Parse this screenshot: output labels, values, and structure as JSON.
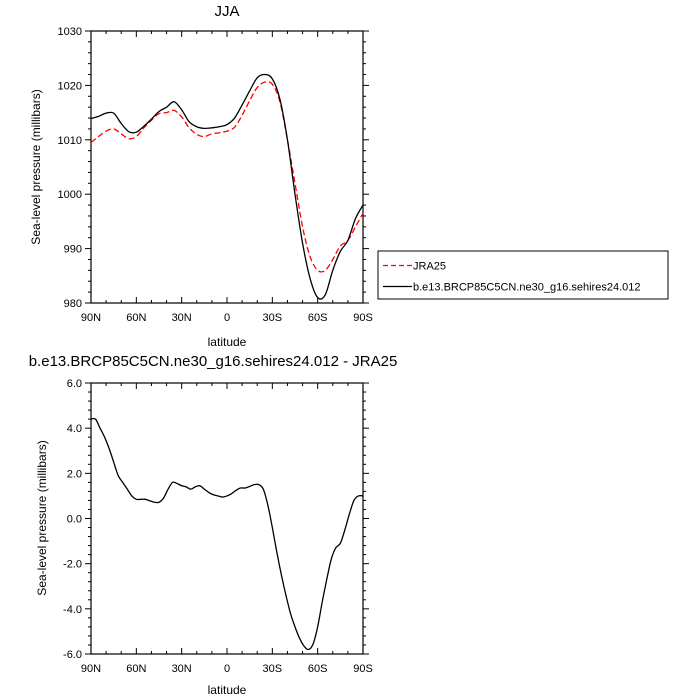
{
  "chart_data": [
    {
      "type": "line",
      "title": "JJA",
      "xlabel": "latitude",
      "ylabel": "Sea-level pressure (millibars)",
      "xlim": [
        90,
        -90
      ],
      "ylim": [
        980,
        1030
      ],
      "x_ticks": [
        90,
        60,
        30,
        0,
        -30,
        -60,
        -90
      ],
      "x_tick_labels": [
        "90N",
        "60N",
        "30N",
        "0",
        "30S",
        "60S",
        "90S"
      ],
      "y_ticks": [
        980,
        990,
        1000,
        1010,
        1020,
        1030
      ],
      "y_tick_labels": [
        "980",
        "990",
        "1000",
        "1010",
        "1020",
        "1030"
      ],
      "legend_position": "outside-right",
      "series": [
        {
          "name": "JRA25",
          "color": "#ff0000",
          "dash": "dashed",
          "x": [
            90,
            85,
            80,
            75,
            70,
            65,
            60,
            55,
            50,
            45,
            40,
            35,
            30,
            25,
            20,
            15,
            10,
            5,
            0,
            -5,
            -10,
            -15,
            -20,
            -25,
            -30,
            -35,
            -40,
            -45,
            -50,
            -55,
            -60,
            -65,
            -70,
            -75,
            -80,
            -85,
            -90
          ],
          "y": [
            1009.5,
            1010.6,
            1011.6,
            1012.0,
            1011.1,
            1010.2,
            1010.6,
            1012.2,
            1013.6,
            1014.8,
            1015.0,
            1015.4,
            1014.2,
            1012.2,
            1011.0,
            1010.6,
            1011.1,
            1011.3,
            1011.6,
            1012.3,
            1014.5,
            1017.2,
            1019.6,
            1020.6,
            1020.2,
            1017.0,
            1010.0,
            1002.0,
            994.0,
            988.5,
            986.0,
            986.0,
            988.0,
            990.5,
            991.5,
            994.0,
            996.5
          ]
        },
        {
          "name": "b.e13.BRCP85C5CN.ne30_g16.sehires24.012",
          "color": "#000000",
          "dash": "solid",
          "x": [
            90,
            85,
            80,
            75,
            70,
            65,
            60,
            55,
            50,
            45,
            40,
            35,
            30,
            25,
            20,
            15,
            10,
            5,
            0,
            -5,
            -10,
            -15,
            -20,
            -25,
            -30,
            -35,
            -40,
            -45,
            -50,
            -55,
            -60,
            -65,
            -70,
            -75,
            -80,
            -85,
            -90
          ],
          "y": [
            1013.9,
            1014.3,
            1014.9,
            1014.9,
            1013.0,
            1011.5,
            1011.4,
            1012.5,
            1013.8,
            1015.2,
            1016.0,
            1017.0,
            1015.5,
            1013.3,
            1012.4,
            1012.1,
            1012.2,
            1012.4,
            1012.8,
            1014.0,
            1016.4,
            1019.0,
            1021.4,
            1022.0,
            1021.2,
            1017.5,
            1010.0,
            1000.0,
            991.0,
            984.5,
            981.0,
            981.5,
            986.0,
            989.5,
            991.5,
            995.5,
            998.0
          ]
        }
      ]
    },
    {
      "type": "line",
      "title": "b.e13.BRCP85C5CN.ne30_g16.sehires24.012 - JRA25",
      "xlabel": "latitude",
      "ylabel": "Sea-level pressure (millibars)",
      "xlim": [
        90,
        -90
      ],
      "ylim": [
        -6,
        6
      ],
      "x_ticks": [
        90,
        60,
        30,
        0,
        -30,
        -60,
        -90
      ],
      "x_tick_labels": [
        "90N",
        "60N",
        "30N",
        "0",
        "30S",
        "60S",
        "90S"
      ],
      "y_ticks": [
        -6,
        -4,
        -2,
        0,
        2,
        4,
        6
      ],
      "y_tick_labels": [
        "-6.0",
        "-4.0",
        "-2.0",
        "0.0",
        "2.0",
        "4.0",
        "6.0"
      ],
      "series": [
        {
          "color": "#000000",
          "dash": "solid",
          "x": [
            90,
            87,
            84,
            81,
            78,
            75,
            72,
            69,
            66,
            63,
            60,
            57,
            54,
            51,
            48,
            45,
            42,
            39,
            36,
            33,
            30,
            27,
            24,
            21,
            18,
            15,
            12,
            9,
            6,
            3,
            0,
            -3,
            -6,
            -9,
            -12,
            -15,
            -18,
            -21,
            -24,
            -27,
            -30,
            -33,
            -36,
            -39,
            -42,
            -45,
            -48,
            -51,
            -54,
            -57,
            -60,
            -63,
            -66,
            -69,
            -72,
            -75,
            -78,
            -81,
            -84,
            -87,
            -90
          ],
          "y": [
            4.4,
            4.4,
            4.0,
            3.6,
            3.1,
            2.5,
            1.9,
            1.6,
            1.3,
            1.0,
            0.85,
            0.85,
            0.85,
            0.78,
            0.72,
            0.72,
            0.9,
            1.3,
            1.6,
            1.55,
            1.45,
            1.4,
            1.3,
            1.4,
            1.45,
            1.3,
            1.15,
            1.05,
            1.0,
            0.95,
            1.0,
            1.1,
            1.25,
            1.35,
            1.35,
            1.42,
            1.5,
            1.5,
            1.3,
            0.6,
            -0.4,
            -1.5,
            -2.5,
            -3.4,
            -4.2,
            -4.8,
            -5.3,
            -5.65,
            -5.8,
            -5.55,
            -4.8,
            -3.7,
            -2.7,
            -1.8,
            -1.3,
            -1.1,
            -0.5,
            0.2,
            0.8,
            1.0,
            1.0
          ]
        }
      ]
    }
  ]
}
